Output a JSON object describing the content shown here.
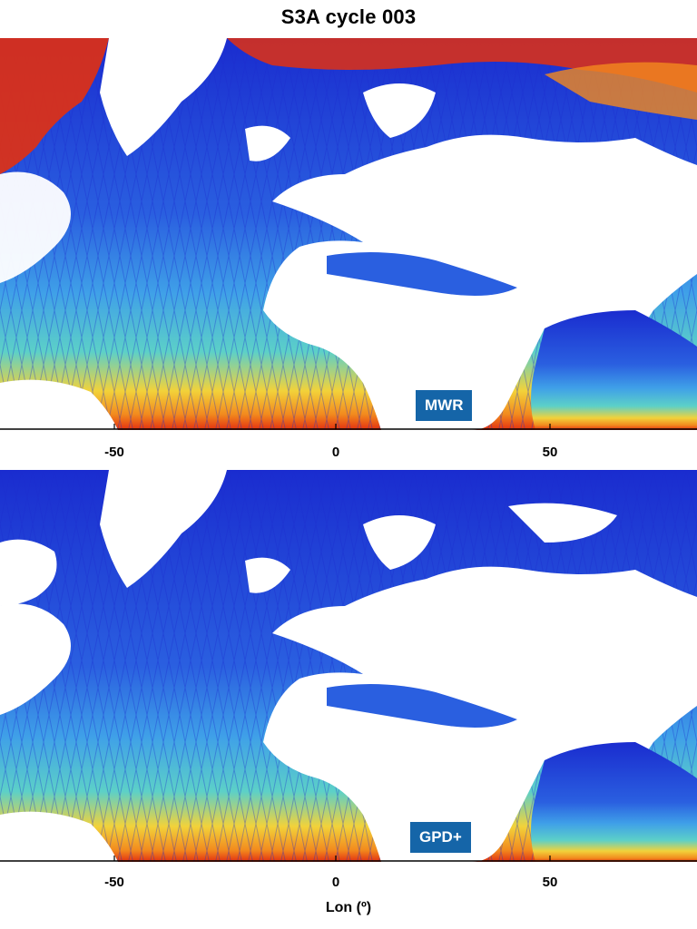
{
  "title": "S3A cycle 003",
  "xlabel": "Lon (º)",
  "xticks": [
    "-50",
    "0",
    "50"
  ],
  "panels": [
    {
      "label": "MWR"
    },
    {
      "label": "GPD+"
    }
  ],
  "colors": {
    "ocean_low": "#1a2ccf",
    "ocean_mid": "#3fa0e8",
    "ocean_teal": "#5cd0c8",
    "warm_yellow": "#f2d23a",
    "warm_orange": "#f28a1e",
    "hot_red": "#e33010",
    "land": "#ffffff",
    "badge": "#1565a8"
  }
}
